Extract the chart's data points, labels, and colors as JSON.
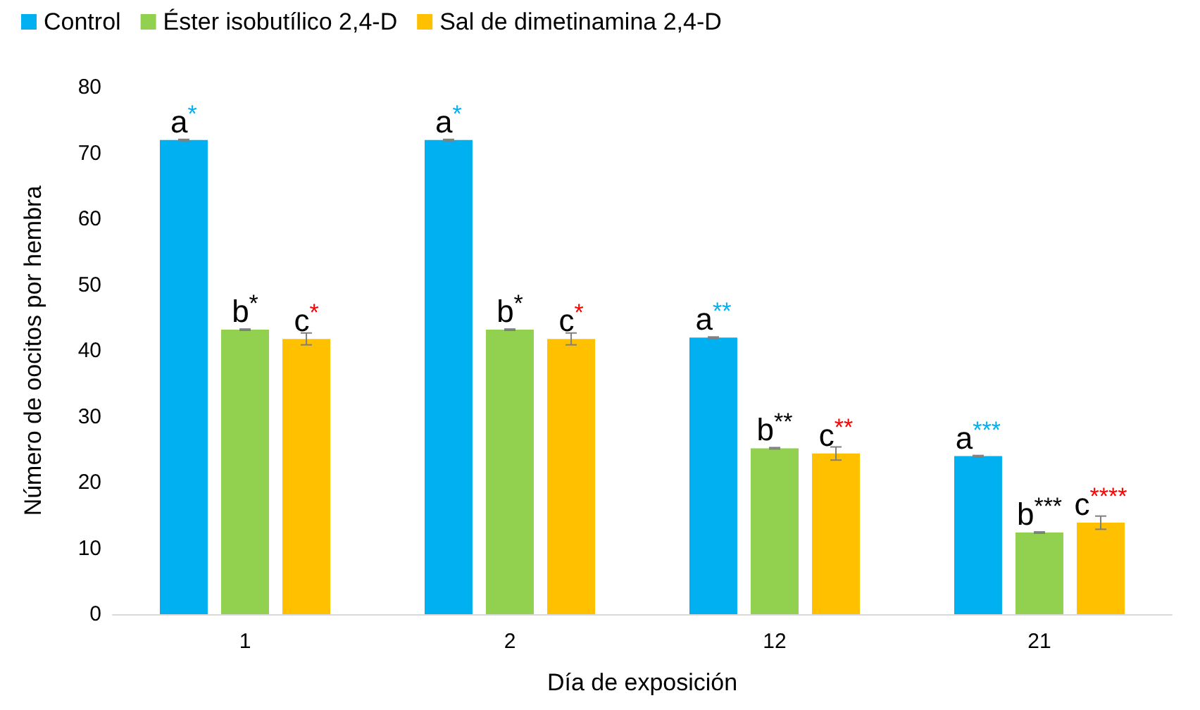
{
  "chart_data": {
    "type": "bar",
    "xlabel": "Día de exposición",
    "ylabel": "Número de oocitos por hembra",
    "categories": [
      "1",
      "2",
      "12",
      "21"
    ],
    "series": [
      {
        "name": "Control",
        "color": "#00b0f0",
        "values": [
          72,
          72,
          42,
          24
        ],
        "errors": [
          0.1,
          0.1,
          0.1,
          0.1
        ],
        "value_labels": [
          "a*",
          "a*",
          "a**",
          "a***"
        ]
      },
      {
        "name": "Éster isobutílico 2,4-D",
        "color": "#92d050",
        "values": [
          43.2,
          43.2,
          25.2,
          12.4
        ],
        "errors": [
          0.1,
          0.1,
          0.1,
          0.1
        ],
        "value_labels": [
          "b*",
          "b*",
          "b**",
          "b***"
        ]
      },
      {
        "name": "Sal de dimetinamina 2,4-D",
        "color": "#ffc000",
        "values": [
          41.8,
          41.8,
          24.4,
          13.9
        ],
        "errors": [
          0.9,
          0.9,
          1,
          1
        ],
        "value_labels": [
          "c*",
          "c*",
          "c**",
          "c****"
        ]
      }
    ],
    "ylim": [
      0,
      80
    ],
    "yticks": [
      0,
      10,
      20,
      30,
      40,
      50,
      60,
      70,
      80
    ],
    "grid": false,
    "legend": "top left"
  }
}
